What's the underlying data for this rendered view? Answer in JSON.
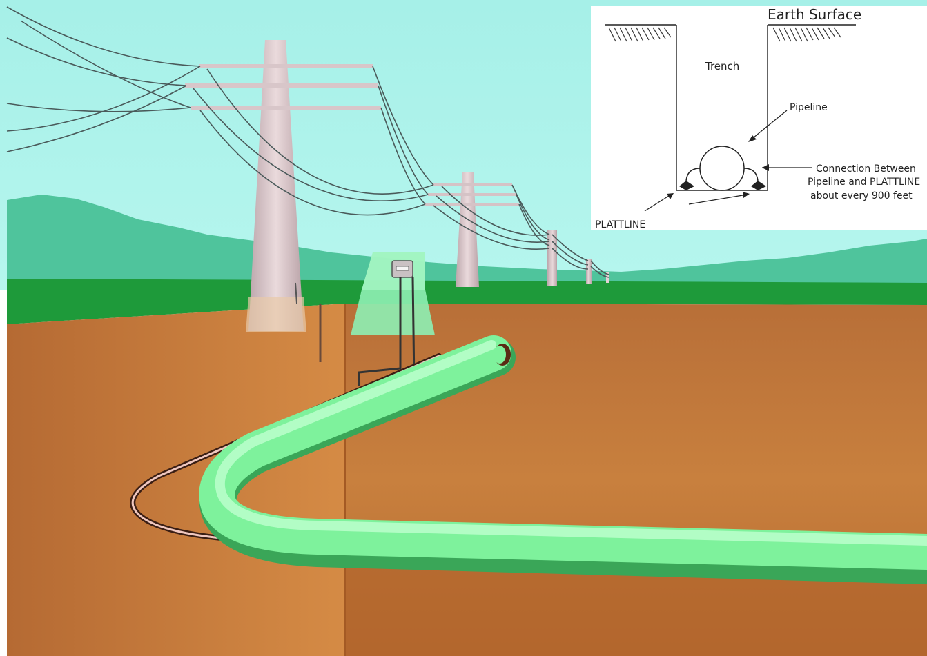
{
  "inset": {
    "earth_surface_label": "Earth Surface",
    "trench_label": "Trench",
    "pipeline_label": "Pipeline",
    "connection_label_line1": "Connection Between",
    "connection_label_line2": "Pipeline and PLATTLINE",
    "connection_label_line3": "about every 900 feet",
    "plattline_label": "PLATTLINE"
  },
  "colors": {
    "sky": "#aaf2ea",
    "hills": "#4fc49c",
    "grass": "#1f9a3a",
    "soil": "#c77a3c",
    "soil_dark": "#a85a22",
    "pipeline": "#7df29a",
    "tower": "#d9c4c8",
    "inset_bg": "#ffffff"
  },
  "icons": [
    "transmission-tower",
    "test-station",
    "pipeline",
    "plattline-cable",
    "ground-hatch"
  ]
}
